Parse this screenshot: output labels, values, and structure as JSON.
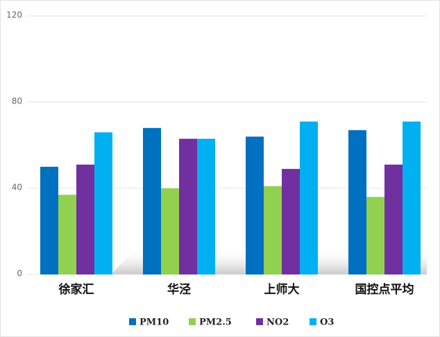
{
  "chart_data": {
    "type": "bar",
    "categories": [
      "徐家汇",
      "华泾",
      "上师大",
      "国控点平均"
    ],
    "series": [
      {
        "name": "PM10",
        "color": "#0070c0",
        "values": [
          50,
          68,
          64,
          67
        ]
      },
      {
        "name": "PM2.5",
        "color": "#92d050",
        "values": [
          37,
          40,
          41,
          36
        ]
      },
      {
        "name": "NO2",
        "color": "#7030a0",
        "values": [
          51,
          63,
          49,
          51
        ]
      },
      {
        "name": "O3",
        "color": "#00b0f0",
        "values": [
          66,
          63,
          71,
          71
        ]
      }
    ],
    "ylim": [
      0,
      120
    ],
    "yticks": [
      0,
      40,
      80,
      120
    ],
    "grid": true,
    "legend": "bottom"
  }
}
